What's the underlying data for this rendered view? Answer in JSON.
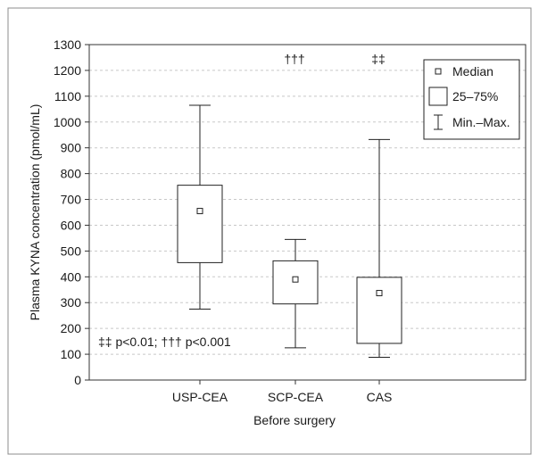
{
  "chart_data": {
    "type": "box",
    "title": "",
    "xlabel": "Before surgery",
    "ylabel": "Plasma KYNA concentration (pmol/mL)",
    "ylim": [
      0,
      1300
    ],
    "yticks": [
      0,
      100,
      200,
      300,
      400,
      500,
      600,
      700,
      800,
      900,
      1000,
      1100,
      1200,
      1300
    ],
    "grid": "horizontal dashed",
    "categories": [
      "USP-CEA",
      "SCP-CEA",
      "CAS"
    ],
    "boxes": [
      {
        "category": "USP-CEA",
        "min": 275,
        "q1": 455,
        "median": 655,
        "q3": 755,
        "max": 1065,
        "mark": ""
      },
      {
        "category": "SCP-CEA",
        "min": 125,
        "q1": 295,
        "median": 390,
        "q3": 462,
        "max": 545,
        "mark": "†††"
      },
      {
        "category": "CAS",
        "min": 88,
        "q1": 142,
        "median": 337,
        "q3": 398,
        "max": 932,
        "mark": "‡‡"
      }
    ],
    "legend": {
      "placement": "top-right",
      "entries": [
        {
          "symbol": "median",
          "label": "Median"
        },
        {
          "symbol": "box",
          "label": "25–75%"
        },
        {
          "symbol": "whisker",
          "label": "Min.–Max."
        }
      ]
    },
    "footnote": "‡‡ p<0.01; ††† p<0.001"
  }
}
